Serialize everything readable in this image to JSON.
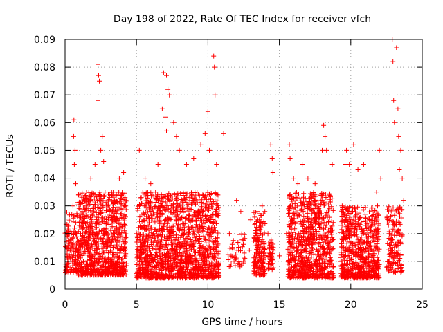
{
  "chart_data": {
    "type": "scatter",
    "title": "Day 198 of 2022, Rate Of TEC Index for receiver vfch",
    "xlabel": "GPS time / hours",
    "ylabel": "ROTI / TECUs",
    "xlim": [
      0,
      25
    ],
    "ylim": [
      0,
      0.09
    ],
    "xticks": [
      "0",
      "5",
      "10",
      "15",
      "20",
      "25"
    ],
    "yticks": [
      "0",
      "0.01",
      "0.02",
      "0.03",
      "0.04",
      "0.05",
      "0.06",
      "0.07",
      "0.08",
      "0.09"
    ],
    "grid": true,
    "marker": "+",
    "color": "#ff0000",
    "series": [
      {
        "name": "ROTI",
        "points": [
          [
            0.1,
            0.015
          ],
          [
            0.2,
            0.022
          ],
          [
            0.3,
            0.012
          ],
          [
            0.4,
            0.018
          ],
          [
            0.5,
            0.01
          ],
          [
            0.55,
            0.03
          ],
          [
            0.6,
            0.055
          ],
          [
            0.62,
            0.061
          ],
          [
            0.65,
            0.045
          ],
          [
            0.7,
            0.05
          ],
          [
            0.75,
            0.038
          ],
          [
            0.8,
            0.02
          ],
          [
            0.85,
            0.012
          ],
          [
            1.2,
            0.028
          ],
          [
            1.5,
            0.035
          ],
          [
            1.8,
            0.04
          ],
          [
            2.1,
            0.045
          ],
          [
            2.3,
            0.081
          ],
          [
            2.35,
            0.077
          ],
          [
            2.4,
            0.075
          ],
          [
            2.3,
            0.068
          ],
          [
            2.5,
            0.05
          ],
          [
            2.6,
            0.055
          ],
          [
            2.7,
            0.046
          ],
          [
            2.8,
            0.035
          ],
          [
            3.0,
            0.03
          ],
          [
            3.5,
            0.028
          ],
          [
            3.8,
            0.04
          ],
          [
            4.0,
            0.035
          ],
          [
            4.1,
            0.042
          ],
          [
            4.2,
            0.033
          ],
          [
            4.25,
            0.03
          ],
          [
            5.2,
            0.05
          ],
          [
            5.6,
            0.04
          ],
          [
            6.0,
            0.038
          ],
          [
            6.5,
            0.045
          ],
          [
            6.8,
            0.065
          ],
          [
            6.9,
            0.078
          ],
          [
            7.1,
            0.077
          ],
          [
            7.2,
            0.072
          ],
          [
            7.3,
            0.07
          ],
          [
            7.0,
            0.062
          ],
          [
            7.1,
            0.057
          ],
          [
            7.6,
            0.06
          ],
          [
            7.8,
            0.055
          ],
          [
            8.0,
            0.05
          ],
          [
            8.5,
            0.045
          ],
          [
            9.0,
            0.047
          ],
          [
            9.5,
            0.052
          ],
          [
            9.8,
            0.056
          ],
          [
            10.0,
            0.064
          ],
          [
            10.1,
            0.05
          ],
          [
            10.4,
            0.084
          ],
          [
            10.45,
            0.08
          ],
          [
            10.5,
            0.07
          ],
          [
            10.6,
            0.045
          ],
          [
            11.1,
            0.056
          ],
          [
            11.5,
            0.02
          ],
          [
            11.7,
            0.015
          ],
          [
            12.0,
            0.032
          ],
          [
            12.3,
            0.028
          ],
          [
            12.5,
            0.018
          ],
          [
            12.9,
            0.014
          ],
          [
            13.0,
            0.025
          ],
          [
            13.4,
            0.02
          ],
          [
            13.6,
            0.025
          ],
          [
            13.8,
            0.03
          ],
          [
            14.2,
            0.02
          ],
          [
            14.4,
            0.015
          ],
          [
            14.4,
            0.052
          ],
          [
            14.5,
            0.047
          ],
          [
            14.55,
            0.042
          ],
          [
            15.0,
            0.012
          ],
          [
            15.5,
            0.02
          ],
          [
            15.7,
            0.052
          ],
          [
            15.75,
            0.047
          ],
          [
            16.0,
            0.04
          ],
          [
            16.3,
            0.038
          ],
          [
            16.6,
            0.045
          ],
          [
            17.0,
            0.04
          ],
          [
            17.5,
            0.038
          ],
          [
            18.0,
            0.05
          ],
          [
            18.1,
            0.059
          ],
          [
            18.2,
            0.055
          ],
          [
            18.3,
            0.05
          ],
          [
            18.7,
            0.045
          ],
          [
            19.4,
            0.03
          ],
          [
            19.6,
            0.045
          ],
          [
            19.7,
            0.05
          ],
          [
            19.9,
            0.045
          ],
          [
            20.2,
            0.052
          ],
          [
            20.5,
            0.043
          ],
          [
            20.9,
            0.045
          ],
          [
            21.3,
            0.025
          ],
          [
            21.8,
            0.035
          ],
          [
            22.0,
            0.05
          ],
          [
            22.1,
            0.04
          ],
          [
            22.7,
            0.02
          ],
          [
            22.9,
            0.09
          ],
          [
            22.95,
            0.082
          ],
          [
            23.0,
            0.068
          ],
          [
            23.05,
            0.06
          ],
          [
            23.2,
            0.087
          ],
          [
            23.3,
            0.065
          ],
          [
            23.35,
            0.055
          ],
          [
            23.5,
            0.05
          ],
          [
            23.6,
            0.04
          ],
          [
            23.4,
            0.043
          ],
          [
            23.7,
            0.032
          ]
        ],
        "dense_segments": [
          {
            "x_start": 0.0,
            "x_end": 0.9,
            "y_min": 0.006,
            "y_max": 0.028,
            "points": 140
          },
          {
            "x_start": 0.9,
            "x_end": 4.3,
            "y_min": 0.005,
            "y_max": 0.035,
            "points": 900
          },
          {
            "x_start": 5.0,
            "x_end": 10.8,
            "y_min": 0.004,
            "y_max": 0.035,
            "points": 1500
          },
          {
            "x_start": 11.4,
            "x_end": 12.6,
            "y_min": 0.008,
            "y_max": 0.02,
            "points": 40
          },
          {
            "x_start": 13.2,
            "x_end": 14.0,
            "y_min": 0.005,
            "y_max": 0.028,
            "points": 170
          },
          {
            "x_start": 14.2,
            "x_end": 14.6,
            "y_min": 0.007,
            "y_max": 0.018,
            "points": 50
          },
          {
            "x_start": 15.6,
            "x_end": 18.8,
            "y_min": 0.004,
            "y_max": 0.035,
            "points": 800
          },
          {
            "x_start": 19.3,
            "x_end": 22.0,
            "y_min": 0.004,
            "y_max": 0.03,
            "points": 650
          },
          {
            "x_start": 22.5,
            "x_end": 23.6,
            "y_min": 0.006,
            "y_max": 0.03,
            "points": 160
          }
        ]
      }
    ]
  }
}
